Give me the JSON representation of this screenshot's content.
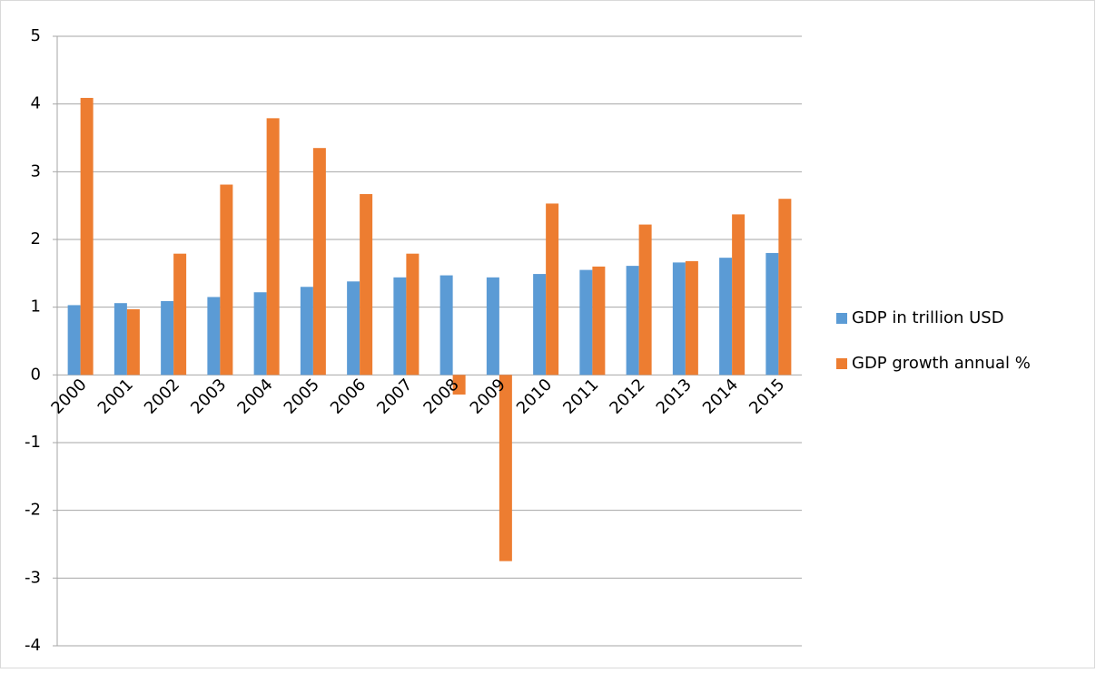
{
  "chart_data": {
    "type": "bar",
    "categories": [
      "2000",
      "2001",
      "2002",
      "2003",
      "2004",
      "2005",
      "2006",
      "2007",
      "2008",
      "2009",
      "2010",
      "2011",
      "2012",
      "2013",
      "2014",
      "2015"
    ],
    "series": [
      {
        "name": "GDP in trillion USD",
        "color": "#5b9bd5",
        "values": [
          1.03,
          1.06,
          1.09,
          1.15,
          1.22,
          1.3,
          1.38,
          1.44,
          1.47,
          1.44,
          1.49,
          1.55,
          1.61,
          1.66,
          1.73,
          1.8
        ]
      },
      {
        "name": "GDP growth annual %",
        "color": "#ed7d31",
        "values": [
          4.09,
          0.97,
          1.79,
          2.81,
          3.79,
          3.35,
          2.67,
          1.79,
          -0.29,
          -2.75,
          2.53,
          1.6,
          2.22,
          1.68,
          2.37,
          2.6
        ]
      }
    ],
    "ylim": [
      -4,
      5
    ],
    "yticks": [
      -4,
      -3,
      -2,
      -1,
      0,
      1,
      2,
      3,
      4,
      5
    ],
    "grid": true,
    "legend": "right"
  }
}
